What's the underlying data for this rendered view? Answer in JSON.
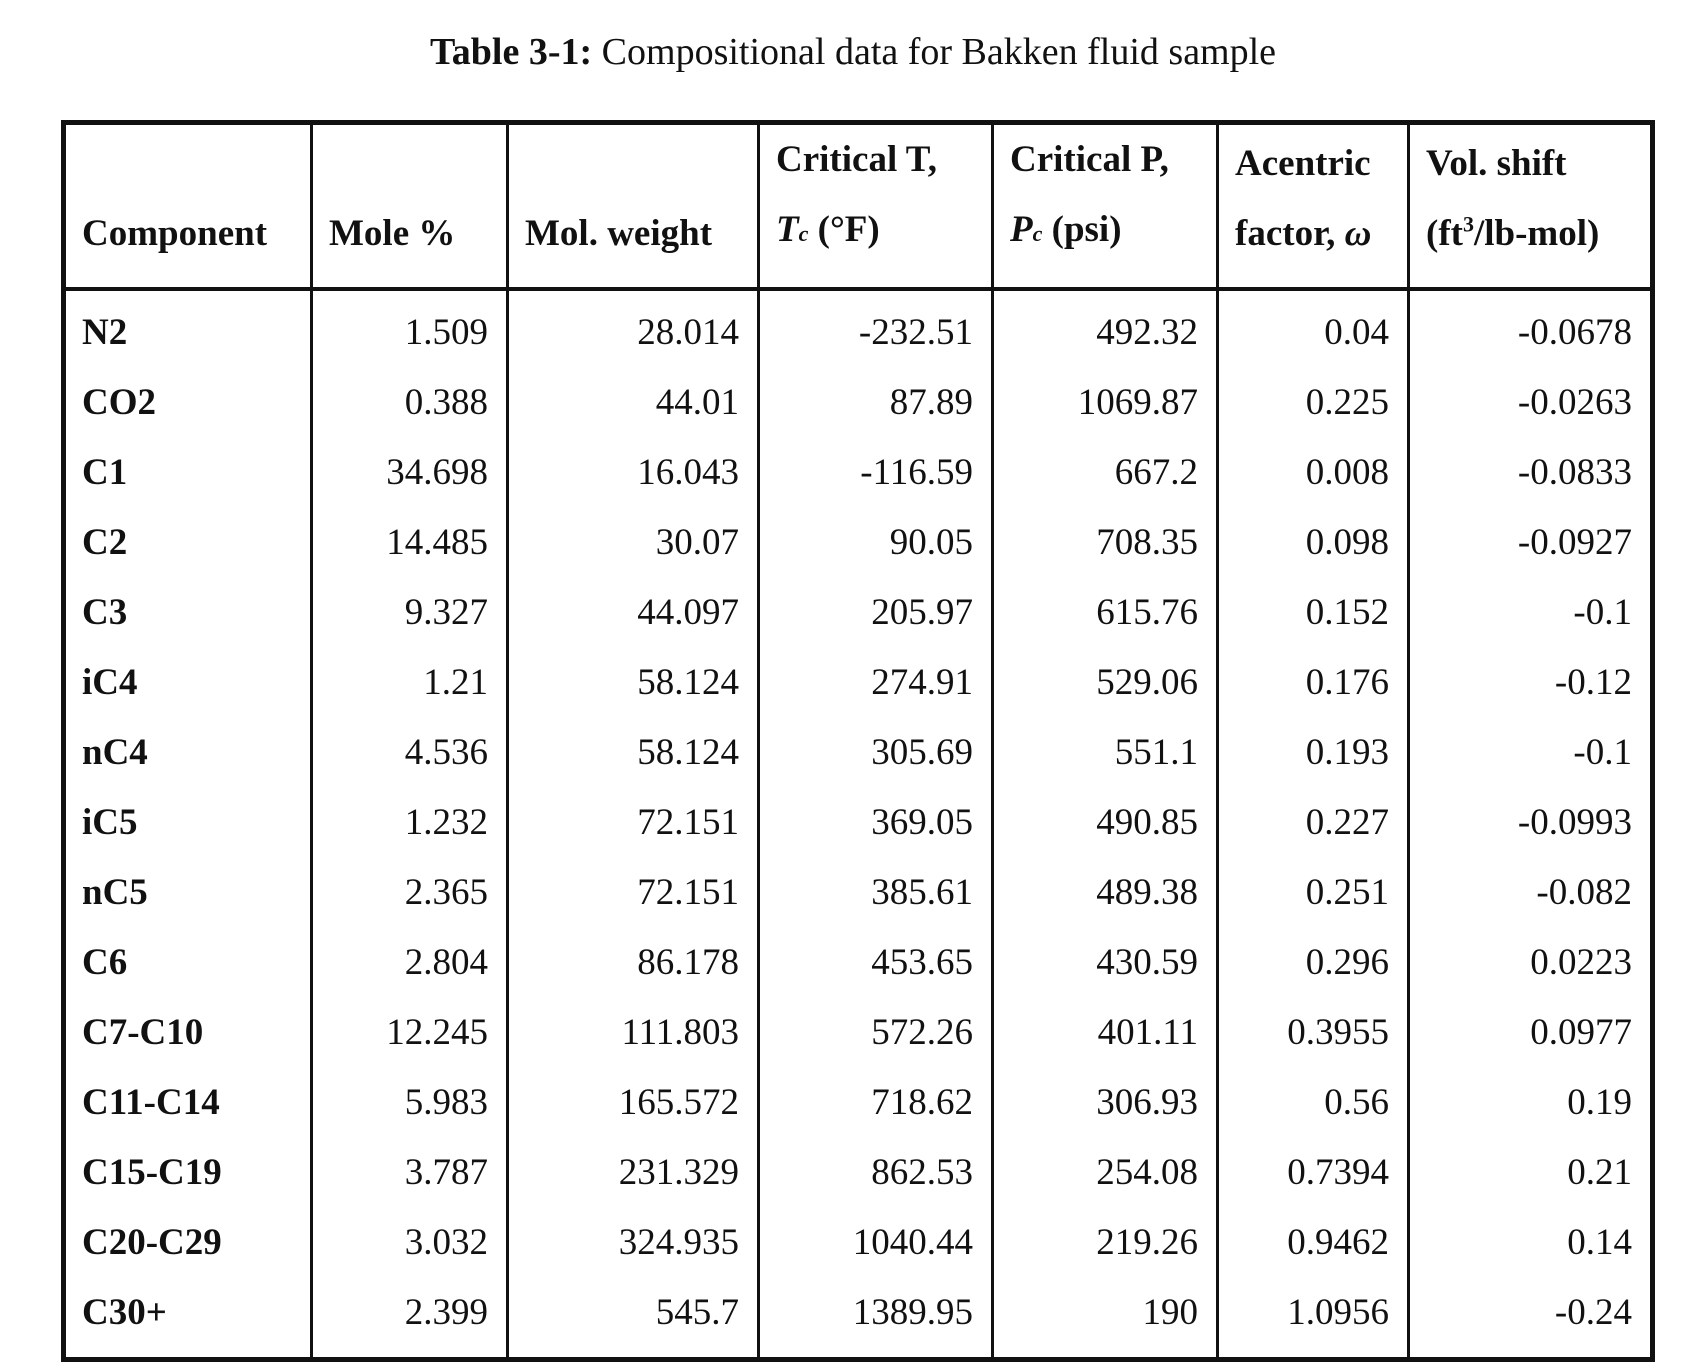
{
  "caption": {
    "label": "Table 3-1:",
    "text": "Compositional data for Bakken fluid sample"
  },
  "headers": {
    "component": "Component",
    "mole": "Mole %",
    "mw": "Mol. weight",
    "tc_line1": "Critical T,",
    "tc_sym": "T",
    "tc_sub": "c",
    "tc_unit": " (°F)",
    "pc_line1": "Critical P,",
    "pc_sym": "P",
    "pc_sub": "c",
    "pc_unit": " (psi)",
    "acentric_line1": "Acentric",
    "acentric_line2": "factor, ",
    "acentric_sym": "ω",
    "vol_line1": "Vol. shift",
    "vol_pre": "(ft",
    "vol_sup": "3",
    "vol_post": "/lb-mol)"
  },
  "rows": [
    [
      "N2",
      "1.509",
      "28.014",
      "-232.51",
      "492.32",
      "0.04",
      "-0.0678"
    ],
    [
      "CO2",
      "0.388",
      "44.01",
      "87.89",
      "1069.87",
      "0.225",
      "-0.0263"
    ],
    [
      "C1",
      "34.698",
      "16.043",
      "-116.59",
      "667.2",
      "0.008",
      "-0.0833"
    ],
    [
      "C2",
      "14.485",
      "30.07",
      "90.05",
      "708.35",
      "0.098",
      "-0.0927"
    ],
    [
      "C3",
      "9.327",
      "44.097",
      "205.97",
      "615.76",
      "0.152",
      "-0.1"
    ],
    [
      "iC4",
      "1.21",
      "58.124",
      "274.91",
      "529.06",
      "0.176",
      "-0.12"
    ],
    [
      "nC4",
      "4.536",
      "58.124",
      "305.69",
      "551.1",
      "0.193",
      "-0.1"
    ],
    [
      "iC5",
      "1.232",
      "72.151",
      "369.05",
      "490.85",
      "0.227",
      "-0.0993"
    ],
    [
      "nC5",
      "2.365",
      "72.151",
      "385.61",
      "489.38",
      "0.251",
      "-0.082"
    ],
    [
      "C6",
      "2.804",
      "86.178",
      "453.65",
      "430.59",
      "0.296",
      "0.0223"
    ],
    [
      "C7-C10",
      "12.245",
      "111.803",
      "572.26",
      "401.11",
      "0.3955",
      "0.0977"
    ],
    [
      "C11-C14",
      "5.983",
      "165.572",
      "718.62",
      "306.93",
      "0.56",
      "0.19"
    ],
    [
      "C15-C19",
      "3.787",
      "231.329",
      "862.53",
      "254.08",
      "0.7394",
      "0.21"
    ],
    [
      "C20-C29",
      "3.032",
      "324.935",
      "1040.44",
      "219.26",
      "0.9462",
      "0.14"
    ],
    [
      "C30+",
      "2.399",
      "545.7",
      "1389.95",
      "190",
      "1.0956",
      "-0.24"
    ]
  ]
}
